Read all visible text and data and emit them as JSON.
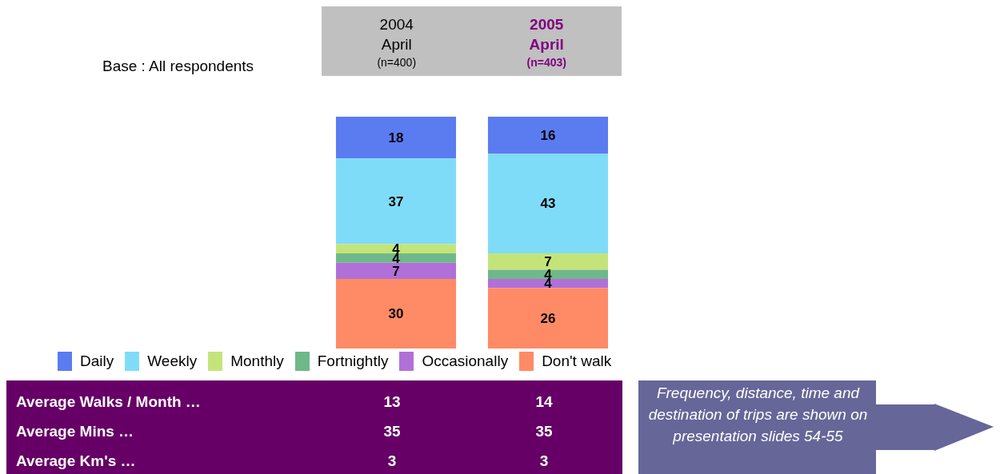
{
  "chart_data": {
    "type": "bar",
    "categories": [
      "2004 April (n=400)",
      "2005 April (n=403)"
    ],
    "stacked": true,
    "series": [
      {
        "name": "Don't walk",
        "color": "#ff8a66",
        "values": [
          30,
          26
        ]
      },
      {
        "name": "Occasionally",
        "color": "#b070d8",
        "values": [
          7,
          4
        ]
      },
      {
        "name": "Fortnightly",
        "color": "#6fb88a",
        "values": [
          4,
          4
        ]
      },
      {
        "name": "Monthly",
        "color": "#c4e47a",
        "values": [
          4,
          7
        ]
      },
      {
        "name": "Weekly",
        "color": "#7fdcf8",
        "values": [
          37,
          43
        ]
      },
      {
        "name": "Daily",
        "color": "#5a7cf0",
        "values": [
          18,
          16
        ]
      }
    ],
    "data_labels": true,
    "tick_labels": "x",
    "legend": "bottom",
    "annotations": [
      "Base : All respondents",
      "Average Walks / Month …",
      "13",
      "14",
      "Average Mins …",
      "35",
      "35",
      "Average Km's …",
      "3",
      "3",
      "Frequency, distance, time and destination of trips are shown on presentation slides 54-55"
    ]
  }
}
